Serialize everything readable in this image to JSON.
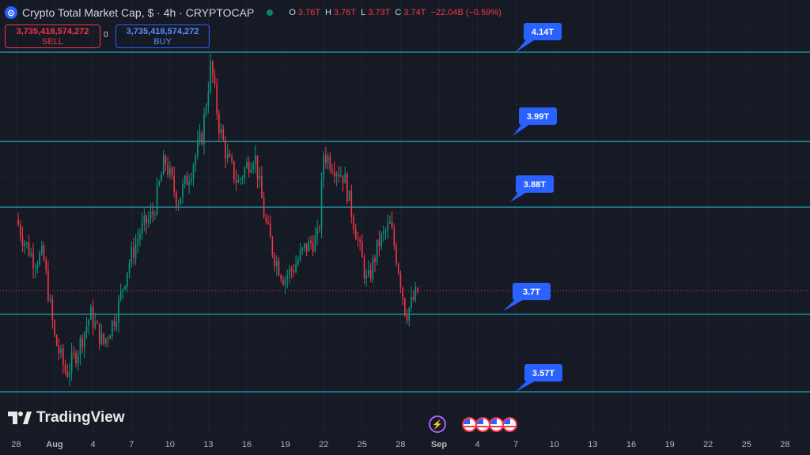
{
  "header": {
    "symbol_icon": "coin-icon",
    "title": "Crypto Total Market Cap, $ · 4h · CRYPTOCAP",
    "ohlc": {
      "o_label": "O",
      "o": "3.76T",
      "h_label": "H",
      "h": "3.76T",
      "l_label": "L",
      "l": "3.73T",
      "c_label": "C",
      "c": "3.74T",
      "change": "−22.04B (−0.59%)"
    }
  },
  "trade": {
    "sell_price": "3,735,418,574,272",
    "sell_label": "SELL",
    "spread": "0",
    "buy_price": "3,735,418,574,272",
    "buy_label": "BUY"
  },
  "branding": {
    "logo_text": "TradingView"
  },
  "colors": {
    "background": "#161a25",
    "up": "#089981",
    "down": "#f23645",
    "level_line": "#26c6da",
    "label_bg": "#2962ff"
  },
  "chart_data": {
    "type": "candlestick",
    "title": "Crypto Total Market Cap, $ · 4h · CRYPTOCAP",
    "unit": "T USD",
    "ylim": [
      3.49,
      4.29
    ],
    "x_tick_labels": [
      "28",
      "Aug",
      "4",
      "7",
      "10",
      "13",
      "16",
      "19",
      "22",
      "25",
      "28",
      "Sep",
      "4",
      "7",
      "10",
      "13",
      "16",
      "19",
      "22",
      "25",
      "28"
    ],
    "x_tick_days": [
      -3,
      0,
      3,
      6,
      9,
      12,
      15,
      18,
      21,
      24,
      27,
      30,
      33,
      36,
      39,
      42,
      45,
      48,
      51,
      54,
      57
    ],
    "levels": [
      {
        "label": "4.14T",
        "value": 4.14
      },
      {
        "label": "3.99T",
        "value": 3.99
      },
      {
        "label": "3.88T",
        "value": 3.88
      },
      {
        "label": "3.7T",
        "value": 3.7
      },
      {
        "label": "3.57T",
        "value": 3.57
      }
    ],
    "current_price": 3.74,
    "close_path_anchors": [
      {
        "day": -3.0,
        "v": 3.86
      },
      {
        "day": -2.5,
        "v": 3.83
      },
      {
        "day": -1.6,
        "v": 3.79
      },
      {
        "day": -0.9,
        "v": 3.8
      },
      {
        "day": 0.0,
        "v": 3.66
      },
      {
        "day": 0.9,
        "v": 3.6
      },
      {
        "day": 1.8,
        "v": 3.64
      },
      {
        "day": 2.8,
        "v": 3.7
      },
      {
        "day": 3.8,
        "v": 3.65
      },
      {
        "day": 4.8,
        "v": 3.7
      },
      {
        "day": 5.7,
        "v": 3.78
      },
      {
        "day": 6.7,
        "v": 3.84
      },
      {
        "day": 7.7,
        "v": 3.87
      },
      {
        "day": 8.6,
        "v": 3.96
      },
      {
        "day": 9.6,
        "v": 3.89
      },
      {
        "day": 10.6,
        "v": 3.94
      },
      {
        "day": 11.5,
        "v": 4.0
      },
      {
        "day": 12.2,
        "v": 4.12
      },
      {
        "day": 12.8,
        "v": 4.02
      },
      {
        "day": 13.5,
        "v": 3.96
      },
      {
        "day": 14.3,
        "v": 3.92
      },
      {
        "day": 15.0,
        "v": 3.95
      },
      {
        "day": 15.6,
        "v": 3.97
      },
      {
        "day": 16.4,
        "v": 3.86
      },
      {
        "day": 17.1,
        "v": 3.8
      },
      {
        "day": 17.9,
        "v": 3.76
      },
      {
        "day": 18.7,
        "v": 3.78
      },
      {
        "day": 19.5,
        "v": 3.81
      },
      {
        "day": 20.6,
        "v": 3.83
      },
      {
        "day": 21.0,
        "v": 3.97
      },
      {
        "day": 21.8,
        "v": 3.95
      },
      {
        "day": 22.6,
        "v": 3.93
      },
      {
        "day": 23.5,
        "v": 3.84
      },
      {
        "day": 24.4,
        "v": 3.75
      },
      {
        "day": 25.3,
        "v": 3.82
      },
      {
        "day": 26.2,
        "v": 3.85
      },
      {
        "day": 26.9,
        "v": 3.77
      },
      {
        "day": 27.4,
        "v": 3.7
      },
      {
        "day": 27.9,
        "v": 3.72
      },
      {
        "day": 28.4,
        "v": 3.74
      }
    ]
  }
}
